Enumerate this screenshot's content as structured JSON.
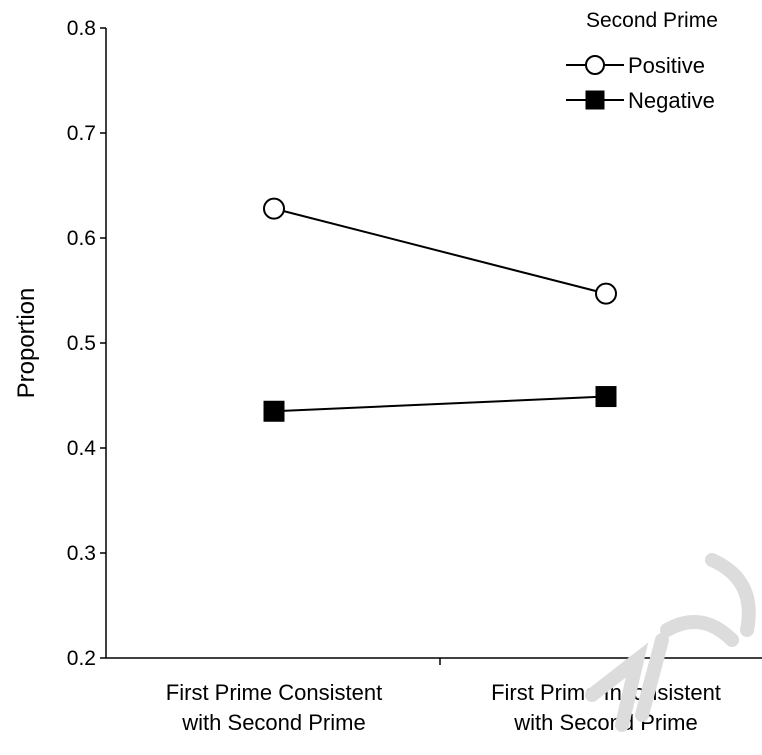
{
  "chart_data": {
    "type": "line",
    "title": "",
    "xlabel": "",
    "ylabel": "Proportion",
    "ylim": [
      0.2,
      0.8
    ],
    "yticks": [
      "0.2",
      "0.3",
      "0.4",
      "0.5",
      "0.6",
      "0.7",
      "0.8"
    ],
    "ytick_values": [
      0.2,
      0.3,
      0.4,
      0.5,
      0.6,
      0.7,
      0.8
    ],
    "categories": [
      [
        "First Prime Consistent",
        "with Second Prime"
      ],
      [
        "First Prime Inconsistent",
        "with Second Prime"
      ]
    ],
    "legend_title": "Second Prime",
    "legend_position": "top-right",
    "grid": false,
    "series": [
      {
        "name": "Positive",
        "marker": "open-circle",
        "values": [
          0.628,
          0.547
        ]
      },
      {
        "name": "Negative",
        "marker": "filled-square",
        "values": [
          0.435,
          0.449
        ]
      }
    ],
    "colors": {
      "line": "#000000",
      "background": "#ffffff",
      "marker_fill_open": "#ffffff",
      "marker_fill_solid": "#000000",
      "watermark": "#dcdcdc"
    }
  }
}
